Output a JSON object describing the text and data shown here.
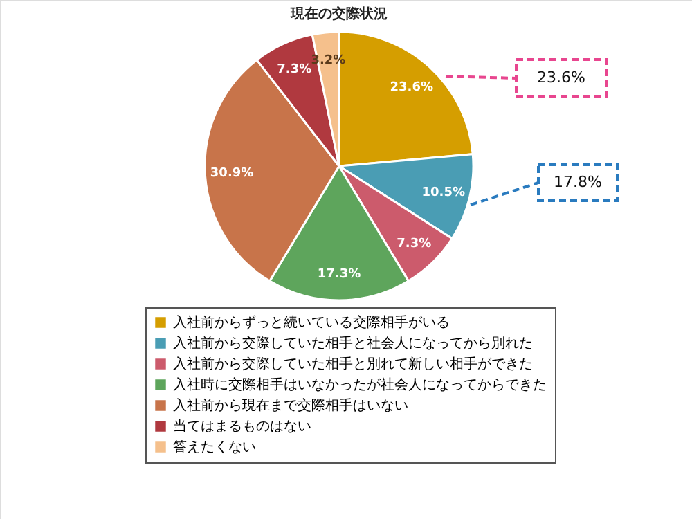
{
  "chart_data": {
    "type": "pie",
    "title": "現在の交際状況",
    "categories": [
      "入社前からずっと続いている交際相手がいる",
      "入社前から交際していた相手と社会人になってから別れた",
      "入社前から交際していた相手と別れて新しい相手ができた",
      "入社時に交際相手はいなかったが社会人になってからできた",
      "入社前から現在まで交際相手はいない",
      "当てはまるものはない",
      "答えたくない"
    ],
    "values": [
      23.6,
      10.5,
      7.3,
      17.3,
      30.9,
      7.3,
      3.2
    ],
    "value_labels": [
      "23.6%",
      "10.5%",
      "7.3%",
      "17.3%",
      "30.9%",
      "7.3%",
      "3.2%"
    ],
    "colors": [
      "#d59e00",
      "#4a9db4",
      "#cc5b6c",
      "#5ea55c",
      "#c8744a",
      "#b0393f",
      "#f5c08c"
    ],
    "legend": "bottom",
    "annotations": [
      "23.6%",
      "17.8%"
    ]
  }
}
